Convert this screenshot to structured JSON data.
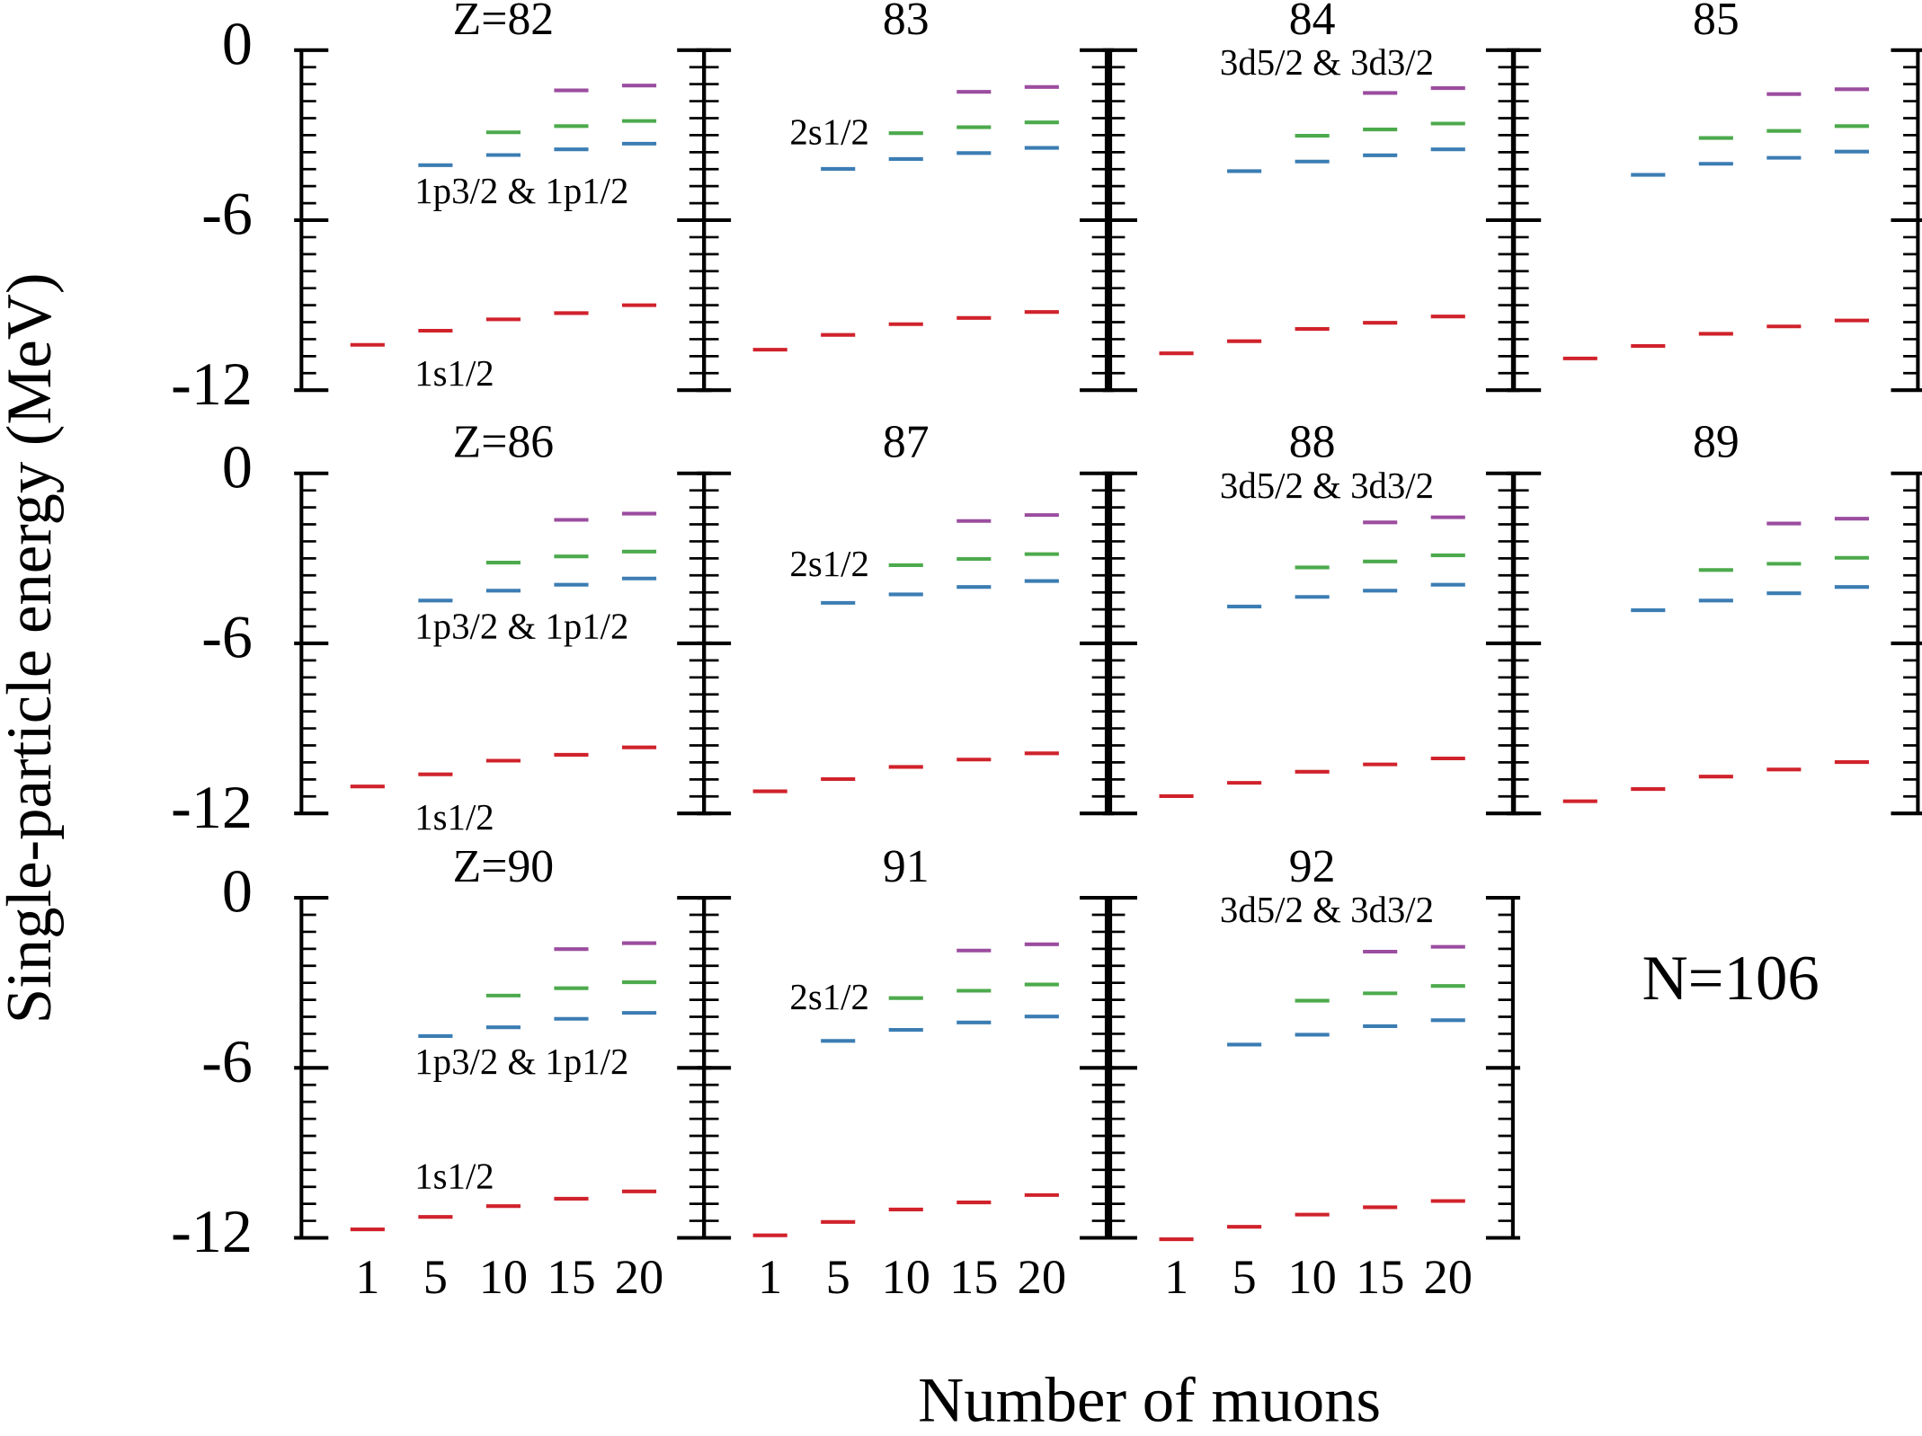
{
  "ylabel": "Single-particle energy (MeV)",
  "xlabel": "Number of muons",
  "note": "N=106",
  "categories": [
    "1",
    "5",
    "10",
    "15",
    "20"
  ],
  "ylim": [
    -12,
    0
  ],
  "yticks": [
    0,
    -6,
    -12
  ],
  "yminor_step": 0.6,
  "levels": [
    {
      "name": "1s1/2",
      "color": "#d0222b"
    },
    {
      "name": "1p3/2 & 1p1/2",
      "color": "#3b7db3"
    },
    {
      "name": "2s1/2",
      "color": "#4caa4c"
    },
    {
      "name": "3d5/2 & 3d3/2",
      "color": "#9b4d9f"
    }
  ],
  "chart_data": [
    {
      "type": "level",
      "title": "Z=82",
      "labeled": [
        0,
        1
      ],
      "series": [
        {
          "values": [
            -10.4,
            -9.9,
            -9.5,
            -9.28,
            -9.0
          ]
        },
        {
          "values": [
            null,
            -4.06,
            -3.7,
            -3.5,
            -3.3
          ]
        },
        {
          "values": [
            null,
            null,
            -2.9,
            -2.68,
            -2.5
          ]
        },
        {
          "values": [
            null,
            null,
            null,
            -1.42,
            -1.25
          ]
        }
      ]
    },
    {
      "type": "level",
      "title": "83",
      "labeled": [
        2
      ],
      "series": [
        {
          "values": [
            -10.57,
            -10.05,
            -9.67,
            -9.45,
            -9.24
          ]
        },
        {
          "values": [
            null,
            -4.19,
            -3.84,
            -3.63,
            -3.45
          ]
        },
        {
          "values": [
            null,
            null,
            -2.93,
            -2.72,
            -2.55
          ]
        },
        {
          "values": [
            null,
            null,
            null,
            -1.47,
            -1.3
          ]
        }
      ]
    },
    {
      "type": "level",
      "title": "84",
      "labeled": [
        3
      ],
      "series": [
        {
          "values": [
            -10.7,
            -10.27,
            -9.84,
            -9.62,
            -9.4
          ]
        },
        {
          "values": [
            null,
            -4.27,
            -3.93,
            -3.71,
            -3.5
          ]
        },
        {
          "values": [
            null,
            null,
            -3.02,
            -2.8,
            -2.59
          ]
        },
        {
          "values": [
            null,
            null,
            null,
            -1.51,
            -1.34
          ]
        }
      ]
    },
    {
      "type": "level",
      "title": "85",
      "labeled": [],
      "series": [
        {
          "values": [
            -10.88,
            -10.44,
            -10.01,
            -9.75,
            -9.54
          ]
        },
        {
          "values": [
            null,
            -4.4,
            -4.01,
            -3.8,
            -3.58
          ]
        },
        {
          "values": [
            null,
            null,
            -3.1,
            -2.85,
            -2.68
          ]
        },
        {
          "values": [
            null,
            null,
            null,
            -1.55,
            -1.38
          ]
        }
      ]
    },
    {
      "type": "level",
      "title": "Z=86",
      "labeled": [
        0,
        1
      ],
      "series": [
        {
          "values": [
            -11.05,
            -10.62,
            -10.14,
            -9.93,
            -9.67
          ]
        },
        {
          "values": [
            null,
            -4.49,
            -4.14,
            -3.93,
            -3.71
          ]
        },
        {
          "values": [
            null,
            null,
            -3.15,
            -2.93,
            -2.76
          ]
        },
        {
          "values": [
            null,
            null,
            null,
            -1.64,
            -1.42
          ]
        }
      ]
    },
    {
      "type": "level",
      "title": "87",
      "labeled": [
        2
      ],
      "series": [
        {
          "values": [
            -11.22,
            -10.79,
            -10.36,
            -10.1,
            -9.88
          ]
        },
        {
          "values": [
            null,
            -4.57,
            -4.27,
            -4.01,
            -3.8
          ]
        },
        {
          "values": [
            null,
            null,
            -3.24,
            -3.02,
            -2.85
          ]
        },
        {
          "values": [
            null,
            null,
            null,
            -1.68,
            -1.47
          ]
        }
      ]
    },
    {
      "type": "level",
      "title": "88",
      "labeled": [
        3
      ],
      "series": [
        {
          "values": [
            -11.39,
            -10.92,
            -10.53,
            -10.27,
            -10.06
          ]
        },
        {
          "values": [
            null,
            -4.7,
            -4.36,
            -4.14,
            -3.93
          ]
        },
        {
          "values": [
            null,
            null,
            -3.32,
            -3.11,
            -2.89
          ]
        },
        {
          "values": [
            null,
            null,
            null,
            -1.73,
            -1.55
          ]
        }
      ]
    },
    {
      "type": "level",
      "title": "89",
      "labeled": [],
      "series": [
        {
          "values": [
            -11.57,
            -11.14,
            -10.7,
            -10.45,
            -10.19
          ]
        },
        {
          "values": [
            null,
            -4.83,
            -4.49,
            -4.23,
            -4.01
          ]
        },
        {
          "values": [
            null,
            null,
            -3.41,
            -3.19,
            -2.98
          ]
        },
        {
          "values": [
            null,
            null,
            null,
            -1.77,
            -1.6
          ]
        }
      ]
    },
    {
      "type": "level",
      "title": "Z=90",
      "labeled": [
        0,
        1
      ],
      "series": [
        {
          "values": [
            -11.7,
            -11.26,
            -10.88,
            -10.62,
            -10.36
          ]
        },
        {
          "values": [
            null,
            -4.88,
            -4.57,
            -4.27,
            -4.06
          ]
        },
        {
          "values": [
            null,
            null,
            -3.45,
            -3.19,
            -2.98
          ]
        },
        {
          "values": [
            null,
            null,
            null,
            -1.81,
            -1.6
          ]
        }
      ]
    },
    {
      "type": "level",
      "title": "91",
      "labeled": [
        2
      ],
      "series": [
        {
          "values": [
            -11.91,
            -11.44,
            -11.0,
            -10.75,
            -10.49
          ]
        },
        {
          "values": [
            null,
            -5.05,
            -4.66,
            -4.4,
            -4.19
          ]
        },
        {
          "values": [
            null,
            null,
            -3.54,
            -3.28,
            -3.06
          ]
        },
        {
          "values": [
            null,
            null,
            null,
            -1.86,
            -1.64
          ]
        }
      ]
    },
    {
      "type": "level",
      "title": "92",
      "labeled": [
        3
      ],
      "series": [
        {
          "values": [
            -12.05,
            -11.61,
            -11.18,
            -10.92,
            -10.7
          ]
        },
        {
          "values": [
            null,
            -5.18,
            -4.83,
            -4.53,
            -4.32
          ]
        },
        {
          "values": [
            null,
            null,
            -3.63,
            -3.37,
            -3.11
          ]
        },
        {
          "values": [
            null,
            null,
            null,
            -1.9,
            -1.73
          ]
        }
      ]
    }
  ]
}
